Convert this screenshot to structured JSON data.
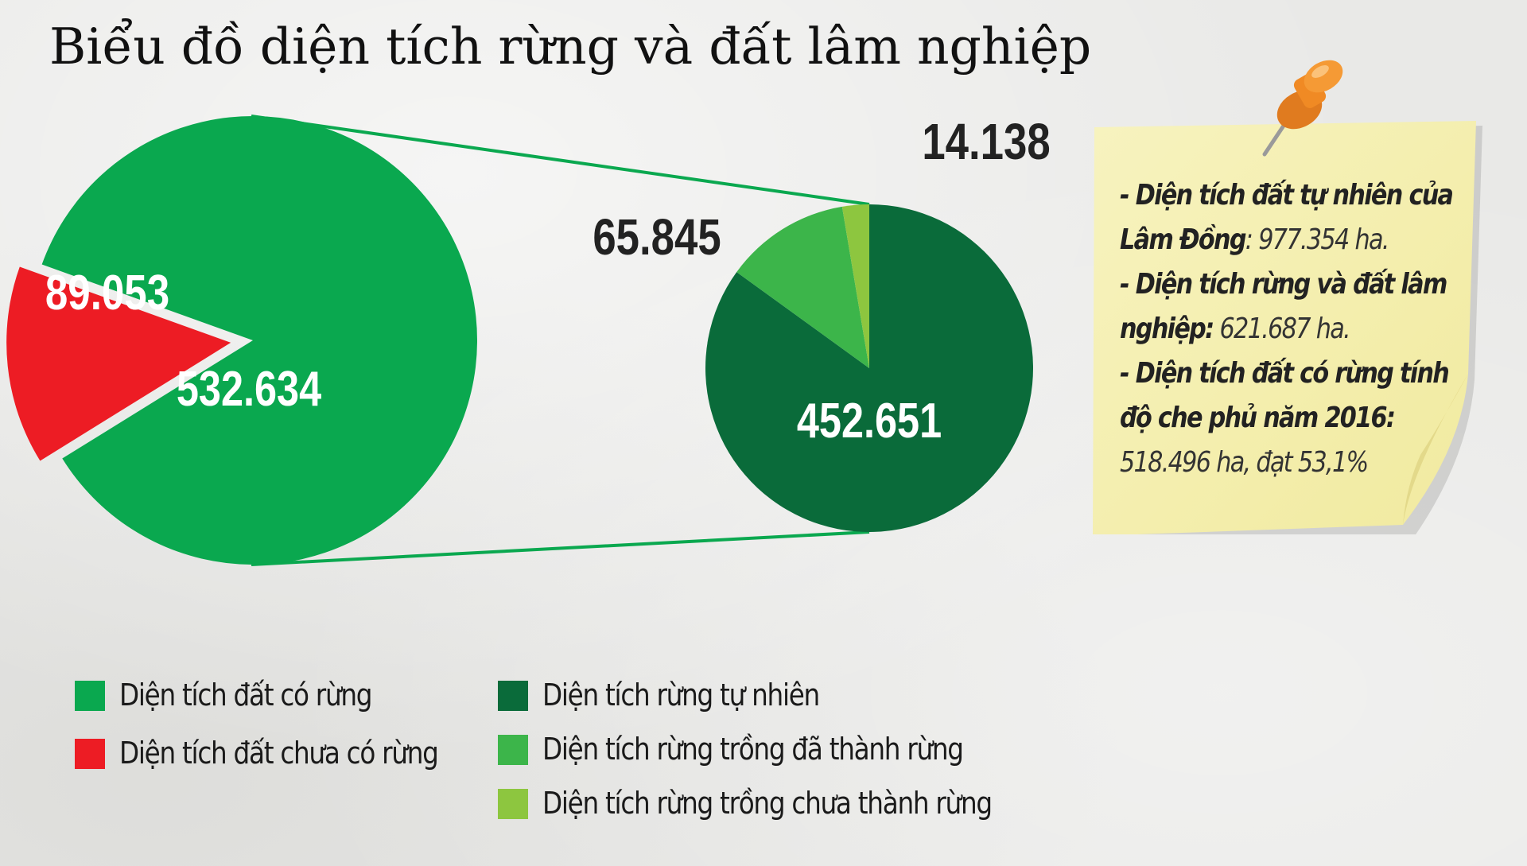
{
  "title": "Biểu đồ diện tích rừng và đất lâm nghiệp",
  "colors": {
    "forest_land": "#0aa84f",
    "unforested_land": "#ed1c24",
    "natural_forest": "#0a6b3a",
    "planted_established": "#3cb54a",
    "planted_not_established": "#8dc63f",
    "connector": "#0aa84f",
    "note_bg": "#f6f1b4"
  },
  "chart_data": [
    {
      "type": "pie",
      "title": "",
      "slices": [
        {
          "label": "Diện tích đất có rừng",
          "value": 532.634,
          "display": "532.634",
          "color": "#0aa84f"
        },
        {
          "label": "Diện tích đất chưa có rừng",
          "value": 89.053,
          "display": "89.053",
          "color": "#ed1c24"
        }
      ]
    },
    {
      "type": "pie",
      "title": "",
      "slices": [
        {
          "label": "Diện tích rừng tự nhiên",
          "value": 452.651,
          "display": "452.651",
          "color": "#0a6b3a"
        },
        {
          "label": "Diện tích rừng trồng đã thành rừng",
          "value": 65.845,
          "display": "65.845",
          "color": "#3cb54a"
        },
        {
          "label": "Diện tích rừng trồng chưa thành rừng",
          "value": 14.138,
          "display": "14.138",
          "color": "#8dc63f"
        }
      ]
    }
  ],
  "legend": {
    "left": [
      {
        "label": "Diện tích đất có rừng",
        "color": "#0aa84f"
      },
      {
        "label": "Diện tích đất chưa có rừng",
        "color": "#ed1c24"
      }
    ],
    "right": [
      {
        "label": "Diện tích rừng tự nhiên",
        "color": "#0a6b3a"
      },
      {
        "label": "Diện tích rừng trồng đã thành rừng",
        "color": "#3cb54a"
      },
      {
        "label": "Diện tích rừng trồng chưa thành rừng",
        "color": "#8dc63f"
      }
    ]
  },
  "note": {
    "items": [
      {
        "label": "Diện tích đất tự nhiên của Lâm Đồng",
        "value": "977.354 ha."
      },
      {
        "label": "Diện tích rừng và đất lâm nghiệp:",
        "value": "621.687 ha."
      },
      {
        "label": "Diện tích đất có rừng tính độ che phủ năm 2016:",
        "value": "518.496 ha, đạt 53,1%"
      }
    ],
    "lines": [
      {
        "bold": "- Diện tích đất tự nhiên của",
        "light": ""
      },
      {
        "bold": " Lâm Đồng",
        "light": ": 977.354 ha."
      },
      {
        "bold": "-  Diện tích rừng và đất lâm",
        "light": ""
      },
      {
        "bold": "nghiệp:",
        "light": " 621.687 ha."
      },
      {
        "bold": "- Diện tích đất có rừng tính",
        "light": ""
      },
      {
        "bold": "độ che phủ năm 2016:",
        "light": ""
      },
      {
        "bold": "",
        "light": "518.496 ha, đạt 53,1%"
      }
    ]
  }
}
